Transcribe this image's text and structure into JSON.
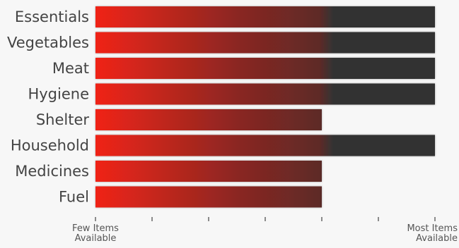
{
  "chart_data": {
    "type": "bar",
    "orientation": "horizontal",
    "categories": [
      "Essentials",
      "Vegetables",
      "Meat",
      "Hygiene",
      "Shelter",
      "Household",
      "Medicines",
      "Fuel"
    ],
    "values": [
      6,
      6,
      6,
      6,
      4,
      6,
      4,
      4
    ],
    "xlim": [
      0,
      6
    ],
    "x_tick_count": 7,
    "x_tick_labels": {
      "low": "Few Items\nAvailable",
      "high": "Most Items\nAvailable"
    },
    "title": "",
    "xlabel": "",
    "ylabel": "",
    "grid": false,
    "legend": "none",
    "colors": {
      "gradient_start": "#f02418",
      "gradient_mid": "#5e2a27",
      "gradient_end": "#333333",
      "background": "#f7f7f7",
      "label": "#444444",
      "axis": "#555555"
    }
  }
}
